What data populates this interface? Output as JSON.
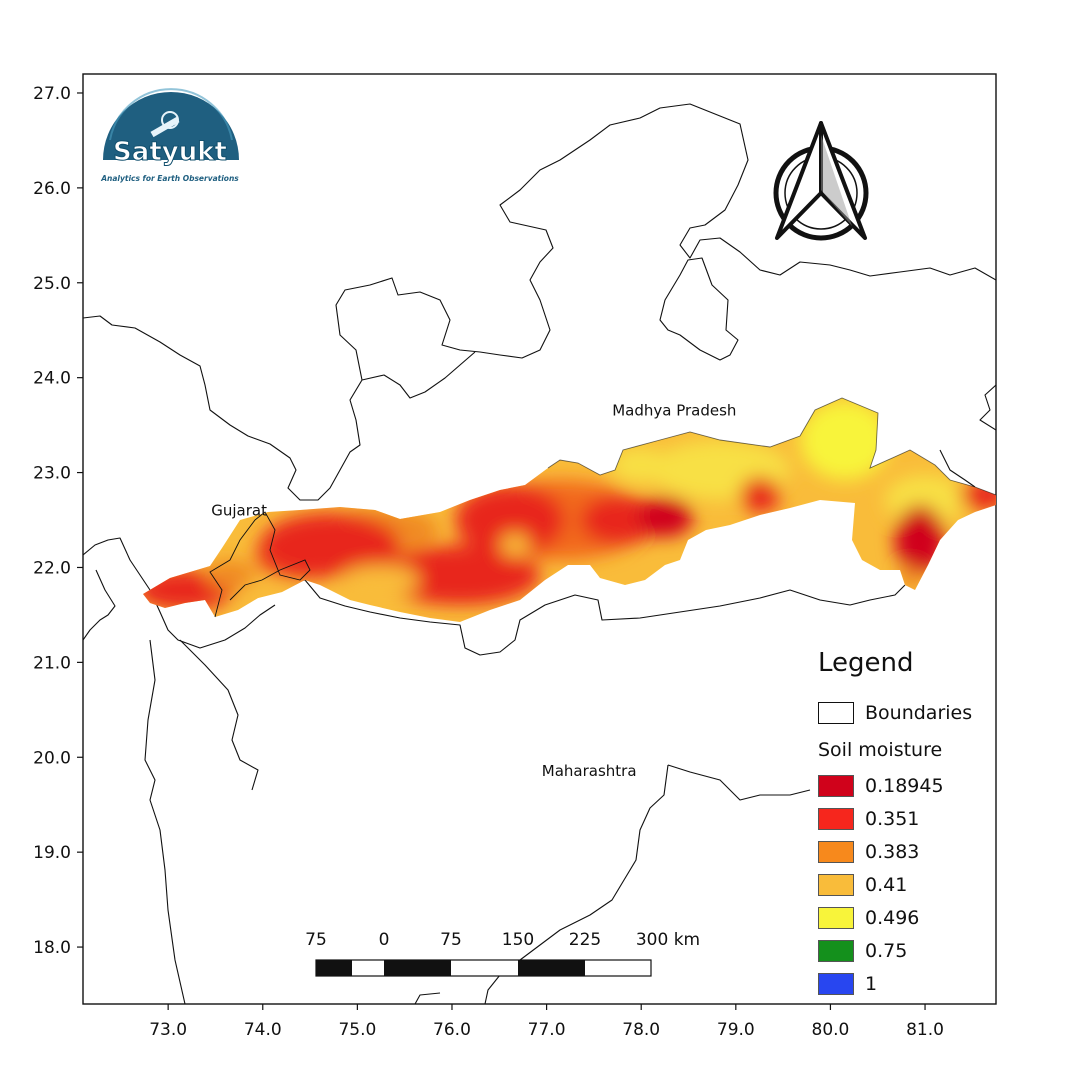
{
  "map": {
    "x_ticks": [
      "73.0",
      "74.0",
      "75.0",
      "76.0",
      "77.0",
      "78.0",
      "79.0",
      "80.0",
      "81.0"
    ],
    "y_ticks": [
      "27.0",
      "26.0",
      "25.0",
      "24.0",
      "23.0",
      "22.0",
      "21.0",
      "20.0",
      "19.0",
      "18.0"
    ],
    "x_range": [
      72.1,
      81.75
    ],
    "y_range": [
      17.4,
      27.2
    ],
    "places": [
      {
        "name": "Gujarat",
        "lon": 73.75,
        "lat": 22.55
      },
      {
        "name": "Madhya Pradesh",
        "lon": 78.35,
        "lat": 23.6
      },
      {
        "name": "Maharashtra",
        "lon": 77.45,
        "lat": 19.8
      }
    ]
  },
  "logo": {
    "name": "Satyukt",
    "tagline": "Analytics for Earth Observations"
  },
  "scale_bar": {
    "labels": [
      "75",
      "0",
      "75",
      "150",
      "225",
      "300 km"
    ]
  },
  "legend": {
    "title": "Legend",
    "boundaries_label": "Boundaries",
    "subtitle": "Soil moisture",
    "classes": [
      {
        "value": "0.18945",
        "color": "#d0021b"
      },
      {
        "value": "0.351",
        "color": "#f6261d"
      },
      {
        "value": "0.383",
        "color": "#f7891c"
      },
      {
        "value": "0.41",
        "color": "#f9bc3a"
      },
      {
        "value": "0.496",
        "color": "#f8f43a"
      },
      {
        "value": "0.75",
        "color": "#14901c"
      },
      {
        "value": "1",
        "color": "#2846f0"
      }
    ]
  }
}
